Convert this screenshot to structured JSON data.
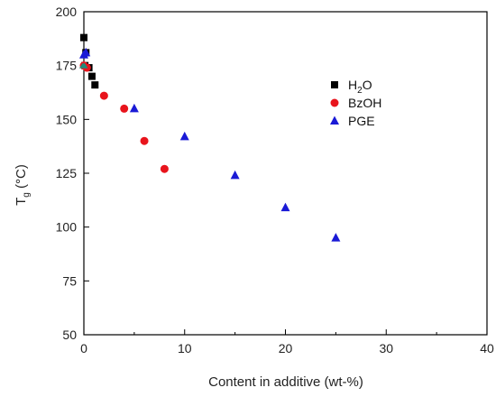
{
  "chart_data": {
    "type": "scatter",
    "xlabel": "Content in additive (wt-%)",
    "ylabel": {
      "main": "T",
      "sub": "g",
      "unit": " (°C)"
    },
    "xlim": [
      0,
      40
    ],
    "ylim": [
      50,
      200
    ],
    "x_ticks": [
      0,
      10,
      20,
      30,
      40
    ],
    "y_ticks": [
      50,
      75,
      100,
      125,
      150,
      175,
      200
    ],
    "x_tick_labels": [
      "0",
      "10",
      "20",
      "30",
      "40"
    ],
    "y_tick_labels": [
      "50",
      "75",
      "100",
      "125",
      "150",
      "175",
      "200"
    ],
    "grid": false,
    "legend_position": "top-right",
    "series": [
      {
        "name": {
          "main": "H",
          "sub": "2",
          "rest": "O"
        },
        "marker": "square",
        "color": "#000000",
        "points": [
          [
            0,
            188
          ],
          [
            0.2,
            181
          ],
          [
            0.5,
            174
          ],
          [
            0.8,
            170
          ],
          [
            1.1,
            166
          ],
          [
            0.1,
            175
          ]
        ]
      },
      {
        "name": "BzOH",
        "marker": "circle",
        "color": "#e8141c",
        "points": [
          [
            0,
            175
          ],
          [
            0.3,
            174
          ],
          [
            2,
            161
          ],
          [
            4,
            155
          ],
          [
            6,
            140
          ],
          [
            8,
            127
          ]
        ]
      },
      {
        "name": "PGE",
        "marker": "triangle",
        "color": "#1a1ad6",
        "points": [
          [
            0,
            180
          ],
          [
            0.2,
            181
          ],
          [
            5,
            155
          ],
          [
            10,
            142
          ],
          [
            15,
            124
          ],
          [
            20,
            109
          ],
          [
            25,
            95
          ]
        ]
      }
    ],
    "annotation_colors": {
      "teal_marker": "#1f8a7a"
    },
    "teal_points": [
      [
        -0.1,
        175
      ],
      [
        0.05,
        175
      ]
    ]
  }
}
